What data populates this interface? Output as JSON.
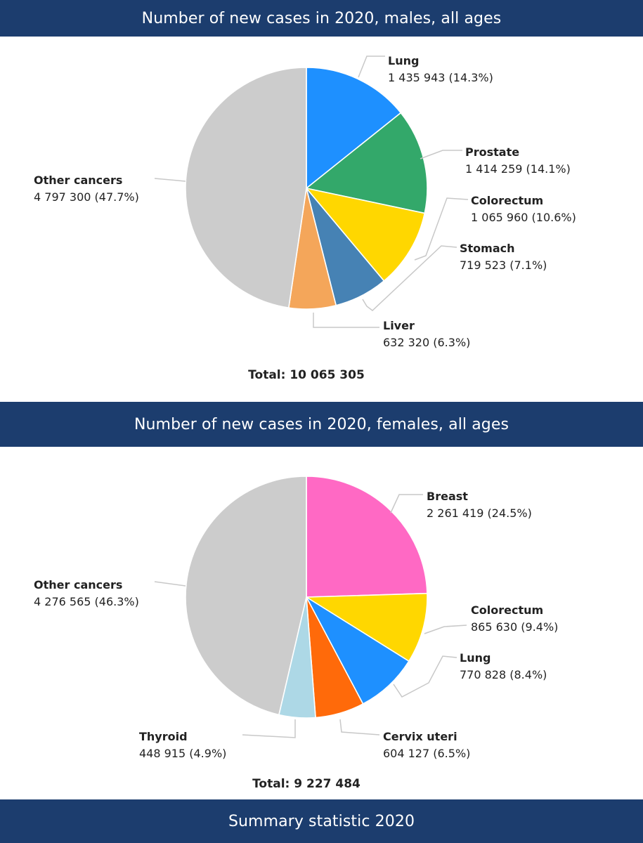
{
  "chart_data": [
    {
      "type": "pie",
      "title": "Number of new cases in 2020, males, all ages",
      "total_label": "Total: 10 065 305",
      "slices": [
        {
          "name": "Lung",
          "value": 1435943,
          "value_label": "1 435 943 (14.3%)",
          "percent": 14.3,
          "color": "#1e90ff"
        },
        {
          "name": "Prostate",
          "value": 1414259,
          "value_label": "1 414 259 (14.1%)",
          "percent": 14.1,
          "color": "#33a86a"
        },
        {
          "name": "Colorectum",
          "value": 1065960,
          "value_label": "1 065 960 (10.6%)",
          "percent": 10.6,
          "color": "#ffd700"
        },
        {
          "name": "Stomach",
          "value": 719523,
          "value_label": "719 523 (7.1%)",
          "percent": 7.1,
          "color": "#4682b4"
        },
        {
          "name": "Liver",
          "value": 632320,
          "value_label": "632 320 (6.3%)",
          "percent": 6.3,
          "color": "#f4a65a"
        },
        {
          "name": "Other cancers",
          "value": 4797300,
          "value_label": "4 797 300 (47.7%)",
          "percent": 47.7,
          "color": "#cccccc"
        }
      ]
    },
    {
      "type": "pie",
      "title": "Number of new cases in 2020, females, all ages",
      "total_label": "Total: 9 227 484",
      "slices": [
        {
          "name": "Breast",
          "value": 2261419,
          "value_label": "2 261 419 (24.5%)",
          "percent": 24.5,
          "color": "#ff69c4"
        },
        {
          "name": "Colorectum",
          "value": 865630,
          "value_label": "865 630 (9.4%)",
          "percent": 9.4,
          "color": "#ffd700"
        },
        {
          "name": "Lung",
          "value": 770828,
          "value_label": "770 828 (8.4%)",
          "percent": 8.4,
          "color": "#1e90ff"
        },
        {
          "name": "Cervix uteri",
          "value": 604127,
          "value_label": "604 127 (6.5%)",
          "percent": 6.5,
          "color": "#ff6a0a"
        },
        {
          "name": "Thyroid",
          "value": 448915,
          "value_label": "448 915 (4.9%)",
          "percent": 4.9,
          "color": "#add8e6"
        },
        {
          "name": "Other cancers",
          "value": 4276565,
          "value_label": "4 276 565 (46.3%)",
          "percent": 46.3,
          "color": "#cccccc"
        }
      ]
    }
  ],
  "footer": {
    "title": "Summary statistic 2020"
  }
}
